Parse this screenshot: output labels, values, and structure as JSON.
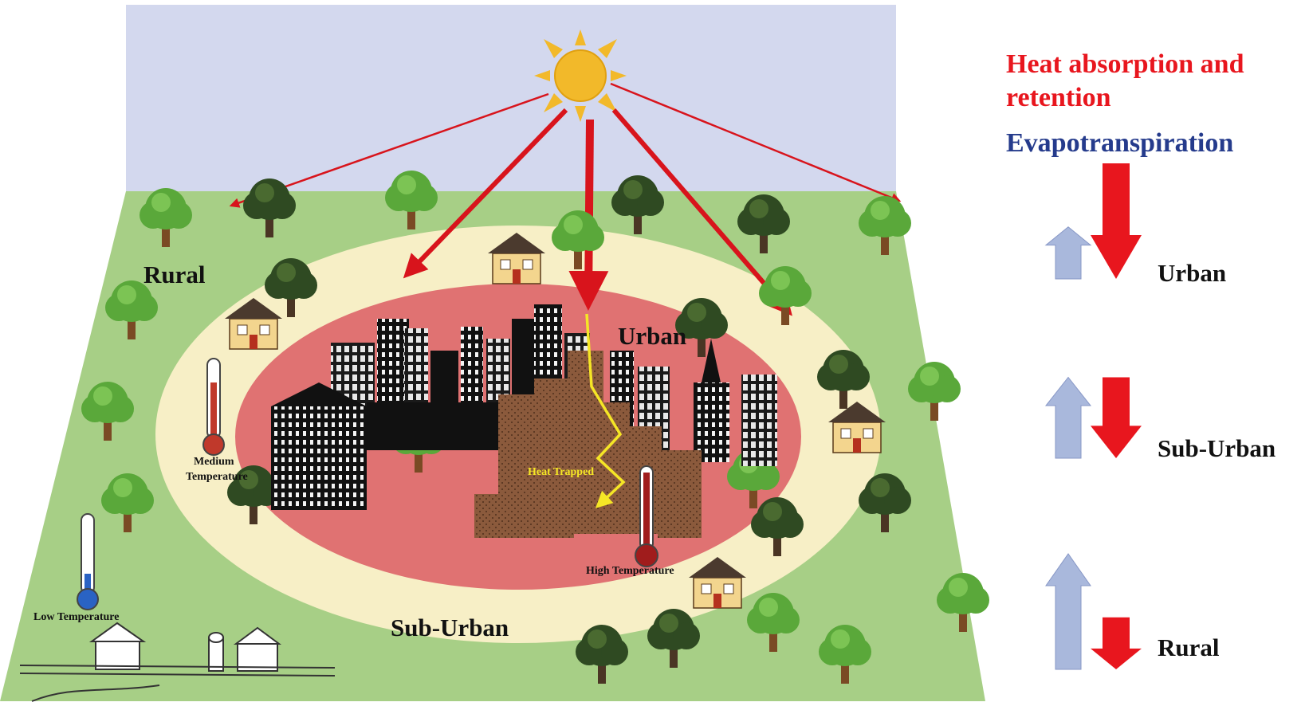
{
  "legend": {
    "heat_label": "Heat absorption and retention",
    "evap_label": "Evapotranspiration",
    "heat_color": "#e8161e",
    "evap_color": "#a9b8dc"
  },
  "zones": {
    "urban": "Urban",
    "suburban": "Sub-Urban",
    "rural": "Rural"
  },
  "annotations": {
    "heat_trapped": "Heat Trapped",
    "high_temp": "High Temperature",
    "medium_temp_line1": "Medium",
    "medium_temp_line2": "Temperature",
    "low_temp": "Low Temperature"
  },
  "comparison": [
    {
      "zone": "Urban",
      "evapotranspiration": "low",
      "heat": "high"
    },
    {
      "zone": "Sub-Urban",
      "evapotranspiration": "medium",
      "heat": "medium"
    },
    {
      "zone": "Rural",
      "evapotranspiration": "high",
      "heat": "low"
    }
  ],
  "colors": {
    "sky": "#d3d8ee",
    "ground": "#a7cf86",
    "suburban_ring": "#f7efc6",
    "urban_core": "#e07272",
    "sun": "#f2b92a",
    "arrow_red": "#d8141c",
    "trapped_heat": "#f5e626"
  }
}
